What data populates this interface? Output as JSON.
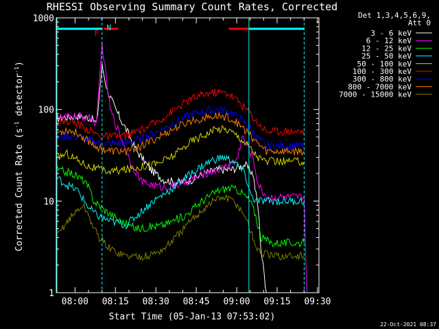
{
  "chart_data": {
    "type": "line",
    "title": "RHESSI Observing Summary Count Rates, Corrected",
    "xlabel": "Start Time (05-Jan-13 07:53:02)",
    "ylabel_main": "Corrected Count Rate (s",
    "ylabel_sup1": "-1",
    "ylabel_mid": " detector",
    "ylabel_sup2": "-1",
    "ylabel_end": ")",
    "y_scale": "log",
    "ylim": [
      1,
      1000
    ],
    "xlim_minutes": [
      0,
      97.5
    ],
    "y_ticks": [
      {
        "value": 1,
        "label": "1"
      },
      {
        "value": 10,
        "label": "10"
      },
      {
        "value": 100,
        "label": "100"
      },
      {
        "value": 1000,
        "label": "1000"
      }
    ],
    "x_ticks": [
      {
        "t": 6.97,
        "label": "08:00"
      },
      {
        "t": 21.97,
        "label": "08:15"
      },
      {
        "t": 36.97,
        "label": "08:30"
      },
      {
        "t": 51.97,
        "label": "08:45"
      },
      {
        "t": 66.97,
        "label": "09:00"
      },
      {
        "t": 81.97,
        "label": "09:15"
      },
      {
        "t": 96.97,
        "label": "09:30"
      }
    ],
    "legend_header": [
      "Det 1,3,4,5,6,9,",
      "Att 0"
    ],
    "series": [
      {
        "name": "3 - 6 keV",
        "color": "#ffffff",
        "points": [
          [
            0,
            80
          ],
          [
            8,
            85
          ],
          [
            13,
            80
          ],
          [
            15,
            70
          ],
          [
            17,
            300
          ],
          [
            19,
            160
          ],
          [
            22,
            100
          ],
          [
            26,
            60
          ],
          [
            30,
            35
          ],
          [
            35,
            22
          ],
          [
            40,
            17
          ],
          [
            45,
            16
          ],
          [
            50,
            17
          ],
          [
            55,
            20
          ],
          [
            60,
            22
          ],
          [
            65,
            22
          ],
          [
            70,
            25
          ],
          [
            73,
            20
          ],
          [
            75,
            8
          ],
          [
            76,
            3
          ],
          [
            78,
            1
          ]
        ]
      },
      {
        "name": "6 - 12 keV",
        "color": "#ff00ff",
        "points": [
          [
            0,
            80
          ],
          [
            8,
            85
          ],
          [
            13,
            80
          ],
          [
            15,
            70
          ],
          [
            17,
            520
          ],
          [
            18,
            300
          ],
          [
            20,
            100
          ],
          [
            24,
            50
          ],
          [
            28,
            25
          ],
          [
            32,
            16
          ],
          [
            40,
            14
          ],
          [
            45,
            15
          ],
          [
            50,
            17
          ],
          [
            55,
            20
          ],
          [
            60,
            22
          ],
          [
            64,
            25
          ],
          [
            67,
            28
          ],
          [
            69,
            50
          ],
          [
            71,
            40
          ],
          [
            73,
            30
          ],
          [
            75,
            15
          ],
          [
            78,
            11
          ],
          [
            92,
            11
          ],
          [
            93,
            1
          ]
        ]
      },
      {
        "name": "12 - 25 keV",
        "color": "#00ff00",
        "points": [
          [
            0,
            22
          ],
          [
            6,
            20
          ],
          [
            10,
            17
          ],
          [
            12,
            14
          ],
          [
            14,
            10
          ],
          [
            18,
            8
          ],
          [
            24,
            6
          ],
          [
            30,
            5
          ],
          [
            40,
            5.5
          ],
          [
            48,
            7
          ],
          [
            54,
            10
          ],
          [
            60,
            13
          ],
          [
            64,
            14
          ],
          [
            68,
            13
          ],
          [
            72,
            10
          ],
          [
            74,
            7
          ],
          [
            76,
            4
          ],
          [
            80,
            3.5
          ],
          [
            92,
            3.5
          ]
        ]
      },
      {
        "name": "25 - 50 keV",
        "color": "#00ffff",
        "points": [
          [
            0,
            18
          ],
          [
            4,
            15
          ],
          [
            8,
            13
          ],
          [
            12,
            8.5
          ],
          [
            15,
            7
          ],
          [
            20,
            6
          ],
          [
            26,
            5.5
          ],
          [
            30,
            7
          ],
          [
            36,
            10
          ],
          [
            42,
            13
          ],
          [
            48,
            18
          ],
          [
            54,
            24
          ],
          [
            58,
            28
          ],
          [
            62,
            30
          ],
          [
            66,
            27
          ],
          [
            70,
            20
          ],
          [
            72,
            12
          ],
          [
            74,
            10
          ],
          [
            92,
            10
          ]
        ]
      },
      {
        "name": "50 - 100 keV",
        "color": "#d8d800",
        "points": [
          [
            0,
            30
          ],
          [
            4,
            33
          ],
          [
            8,
            28
          ],
          [
            12,
            24
          ],
          [
            16,
            22
          ],
          [
            20,
            21
          ],
          [
            26,
            22
          ],
          [
            32,
            24
          ],
          [
            38,
            26
          ],
          [
            44,
            32
          ],
          [
            50,
            45
          ],
          [
            56,
            55
          ],
          [
            60,
            62
          ],
          [
            64,
            60
          ],
          [
            68,
            50
          ],
          [
            72,
            38
          ],
          [
            75,
            30
          ],
          [
            78,
            27
          ],
          [
            92,
            27
          ]
        ]
      },
      {
        "name": "100 - 300 keV",
        "color": "#ff0000",
        "points": [
          [
            0,
            70
          ],
          [
            4,
            75
          ],
          [
            8,
            70
          ],
          [
            12,
            60
          ],
          [
            16,
            52
          ],
          [
            20,
            50
          ],
          [
            26,
            52
          ],
          [
            32,
            60
          ],
          [
            38,
            75
          ],
          [
            44,
            100
          ],
          [
            50,
            130
          ],
          [
            56,
            150
          ],
          [
            60,
            155
          ],
          [
            64,
            150
          ],
          [
            68,
            120
          ],
          [
            72,
            90
          ],
          [
            75,
            70
          ],
          [
            78,
            58
          ],
          [
            92,
            58
          ]
        ]
      },
      {
        "name": "300 - 800 keV",
        "color": "#0000ff",
        "points": [
          [
            0,
            48
          ],
          [
            4,
            52
          ],
          [
            8,
            50
          ],
          [
            12,
            46
          ],
          [
            16,
            43
          ],
          [
            20,
            42
          ],
          [
            26,
            43
          ],
          [
            32,
            48
          ],
          [
            38,
            58
          ],
          [
            44,
            72
          ],
          [
            50,
            88
          ],
          [
            56,
            98
          ],
          [
            60,
            100
          ],
          [
            64,
            96
          ],
          [
            68,
            80
          ],
          [
            72,
            62
          ],
          [
            75,
            48
          ],
          [
            78,
            40
          ],
          [
            92,
            40
          ]
        ]
      },
      {
        "name": "800 - 7000 keV",
        "color": "#ff8000",
        "points": [
          [
            0,
            55
          ],
          [
            4,
            60
          ],
          [
            8,
            55
          ],
          [
            12,
            45
          ],
          [
            16,
            38
          ],
          [
            20,
            35
          ],
          [
            26,
            35
          ],
          [
            32,
            40
          ],
          [
            38,
            50
          ],
          [
            44,
            62
          ],
          [
            50,
            75
          ],
          [
            56,
            82
          ],
          [
            60,
            85
          ],
          [
            64,
            82
          ],
          [
            68,
            68
          ],
          [
            72,
            52
          ],
          [
            75,
            42
          ],
          [
            78,
            35
          ],
          [
            92,
            35
          ]
        ]
      },
      {
        "name": "7000 - 15000 keV",
        "color": "#808000",
        "points": [
          [
            0,
            4
          ],
          [
            4,
            6
          ],
          [
            8,
            8
          ],
          [
            10,
            9
          ],
          [
            12,
            7
          ],
          [
            14,
            5
          ],
          [
            16,
            4
          ],
          [
            20,
            3
          ],
          [
            26,
            2.5
          ],
          [
            34,
            2.5
          ],
          [
            40,
            3
          ],
          [
            46,
            4.5
          ],
          [
            52,
            7
          ],
          [
            58,
            10
          ],
          [
            62,
            11
          ],
          [
            66,
            10
          ],
          [
            70,
            7
          ],
          [
            73,
            4
          ],
          [
            75,
            2.8
          ],
          [
            80,
            2.5
          ],
          [
            92,
            2.5
          ]
        ]
      }
    ],
    "annotations": {
      "flare_label": "F",
      "night_label": "N",
      "bars": [
        {
          "color": "#00ffff",
          "t": [
            0,
            17
          ]
        },
        {
          "color": "#ff0000",
          "t": [
            17.5,
            23
          ]
        },
        {
          "color": "#ff0000",
          "t": [
            64,
            71.5
          ]
        },
        {
          "color": "#00ffff",
          "t": [
            71.5,
            92
          ]
        }
      ],
      "vlines_dashed": [
        17,
        92
      ],
      "vlines_solid": [
        71.5
      ]
    }
  },
  "timestamp": "22-Oct-2021 08:37"
}
